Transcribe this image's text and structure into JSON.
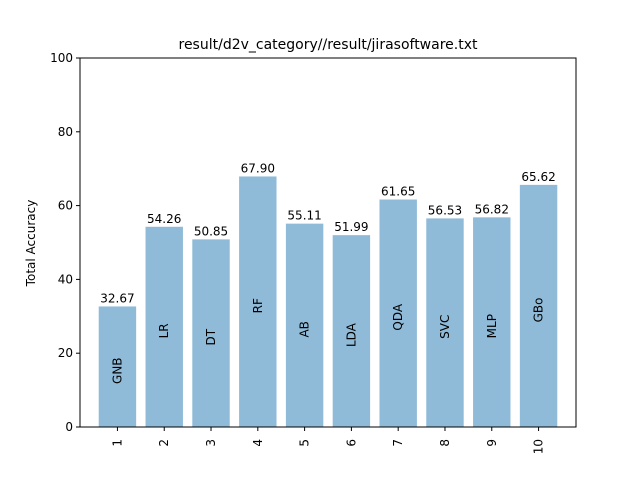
{
  "chart_data": {
    "type": "bar",
    "title": "result/d2v_category//result/jirasoftware.txt",
    "xlabel": "",
    "ylabel": "Total Accuracy",
    "ylim": [
      0,
      100
    ],
    "yticks": [
      0,
      20,
      40,
      60,
      80,
      100
    ],
    "categories": [
      "1",
      "2",
      "3",
      "4",
      "5",
      "6",
      "7",
      "8",
      "9",
      "10"
    ],
    "values": [
      32.67,
      54.26,
      50.85,
      67.9,
      55.11,
      51.99,
      61.65,
      56.53,
      56.82,
      65.62
    ],
    "value_labels": [
      "32.67",
      "54.26",
      "50.85",
      "67.90",
      "55.11",
      "51.99",
      "61.65",
      "56.53",
      "56.82",
      "65.62"
    ],
    "bar_labels": [
      "GNB",
      "LR",
      "DT",
      "RF",
      "AB",
      "LDA",
      "QDA",
      "SVC",
      "MLP",
      "GBo"
    ],
    "bar_color": "#8fbbd9",
    "grid": false,
    "legend": "none"
  }
}
